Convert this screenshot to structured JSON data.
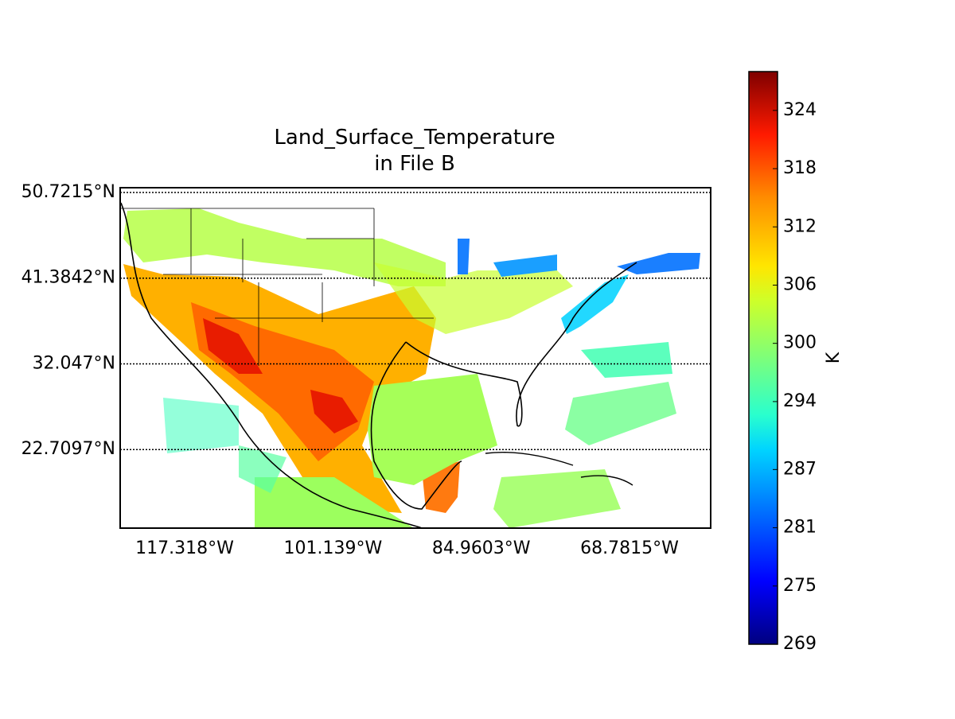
{
  "chart_data": {
    "type": "map",
    "title": "Land_Surface_Temperature",
    "subtitle": "in File B",
    "ylim": [
      14.15,
      51.24
    ],
    "yticks": [
      {
        "value": 50.7215,
        "label": "50.7215°N"
      },
      {
        "value": 41.3842,
        "label": "41.3842°N"
      },
      {
        "value": 32.047,
        "label": "32.047°N"
      },
      {
        "value": 22.7097,
        "label": "22.7097°N"
      }
    ],
    "xlim": [
      -124.35,
      -59.93
    ],
    "xticks": [
      {
        "value": -117.318,
        "label": "117.318°W"
      },
      {
        "value": -101.139,
        "label": "101.139°W"
      },
      {
        "value": -84.9603,
        "label": "84.9603°W"
      },
      {
        "value": -68.7815,
        "label": "68.7815°W"
      }
    ],
    "grid": true,
    "colorbar": {
      "label": "K",
      "lim": [
        269,
        328
      ],
      "ticks": [
        269,
        275,
        281,
        287,
        294,
        300,
        306,
        312,
        318,
        324
      ]
    }
  }
}
